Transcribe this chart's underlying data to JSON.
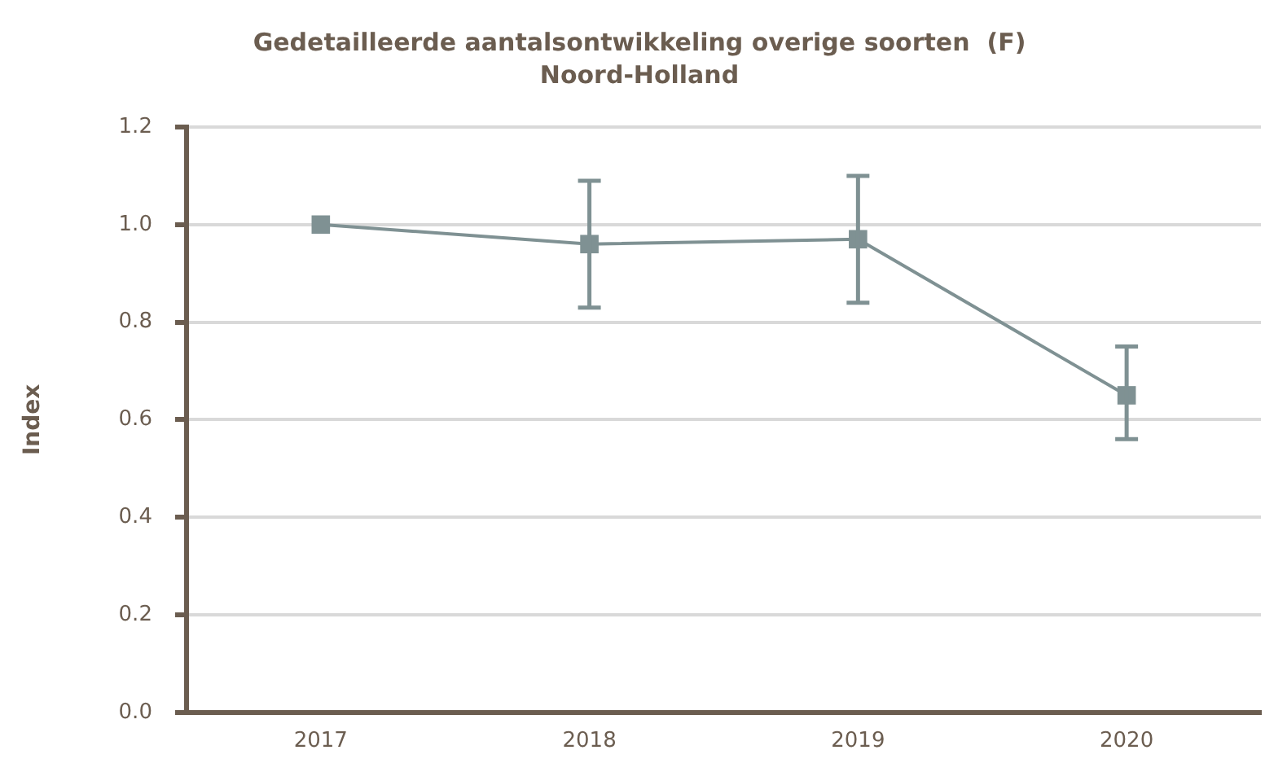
{
  "chart_data": {
    "type": "line",
    "title": "Gedetailleerde aantalsontwikkeling overige soorten  (F)",
    "subtitle": "Noord-Holland",
    "ylabel": "Index",
    "categories": [
      "2017",
      "2018",
      "2019",
      "2020"
    ],
    "series": [
      {
        "color": "#7f9193",
        "values": [
          1.0,
          0.96,
          0.97,
          0.65
        ],
        "errors": [
          null,
          [
            0.83,
            1.09
          ],
          [
            0.84,
            1.1
          ],
          [
            0.56,
            0.75
          ]
        ]
      }
    ],
    "ylim": [
      0,
      1.2
    ],
    "yticks": [
      {
        "value": 0,
        "label": "0.0"
      },
      {
        "value": 0.2,
        "label": "0.2"
      },
      {
        "value": 0.4,
        "label": "0.4"
      },
      {
        "value": 0.6,
        "label": "0.6"
      },
      {
        "value": 0.8,
        "label": "0.8"
      },
      {
        "value": 1,
        "label": "1.0"
      },
      {
        "value": 1.2,
        "label": "1.2"
      }
    ],
    "grid": "y",
    "legend": false,
    "marker": "square",
    "line_style": "solid"
  }
}
